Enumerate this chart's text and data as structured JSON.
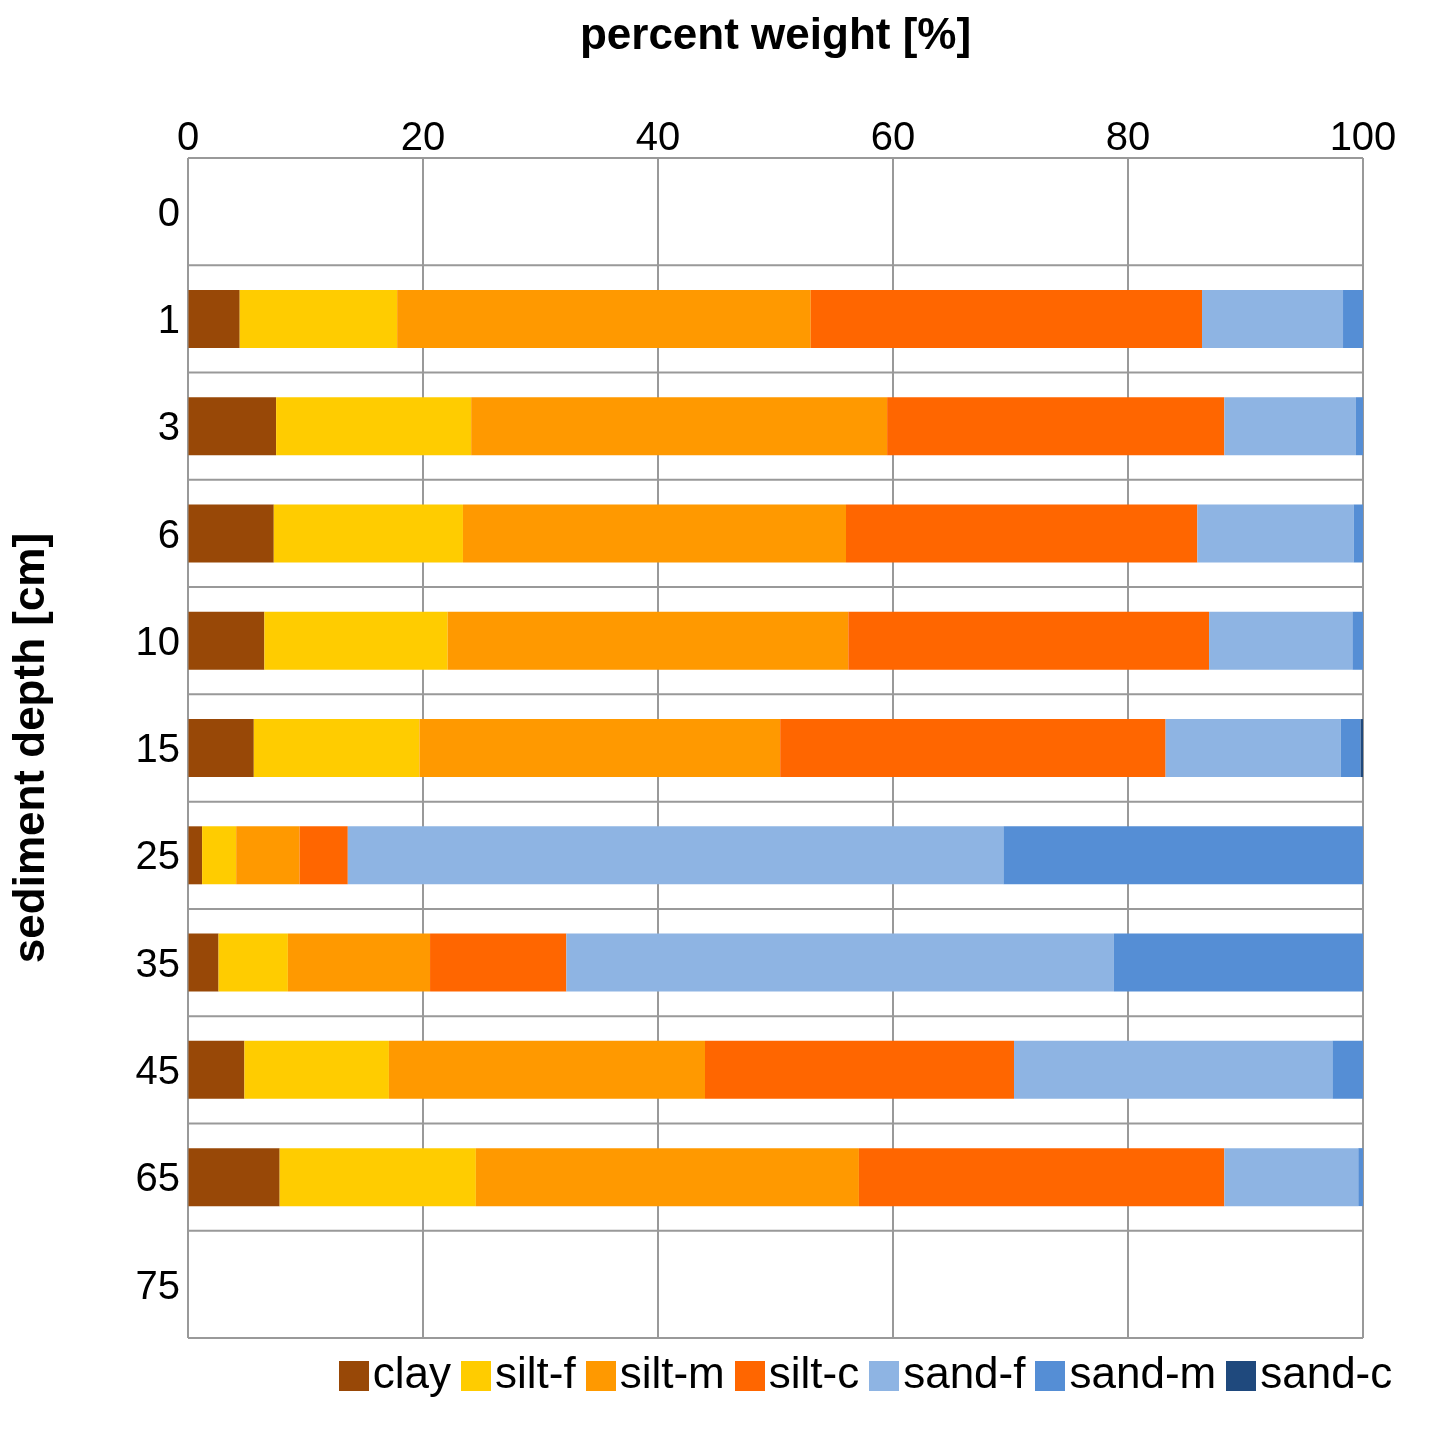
{
  "chart_data": {
    "type": "bar",
    "orientation": "horizontal",
    "stacked": true,
    "xlabel": "percent weight [%]",
    "ylabel": "sediment depth [cm]",
    "categories": [
      "0",
      "1",
      "3",
      "6",
      "10",
      "15",
      "25",
      "35",
      "45",
      "65",
      "75"
    ],
    "xlim": [
      0,
      100
    ],
    "xticks": [
      0,
      20,
      40,
      60,
      80,
      100
    ],
    "grid": true,
    "legend": "bottom",
    "series": [
      {
        "name": "clay",
        "color": "#984807",
        "values": [
          null,
          4.4,
          7.5,
          7.3,
          6.5,
          5.6,
          1.2,
          2.6,
          4.8,
          7.8,
          null
        ]
      },
      {
        "name": "silt-f",
        "color": "#ffcc00",
        "values": [
          null,
          13.4,
          16.6,
          16.1,
          15.6,
          14.1,
          2.9,
          5.9,
          12.3,
          16.7,
          null
        ]
      },
      {
        "name": "silt-m",
        "color": "#ff9900",
        "values": [
          null,
          35.2,
          35.4,
          32.6,
          34.1,
          30.7,
          5.4,
          12.1,
          26.9,
          32.6,
          null
        ]
      },
      {
        "name": "silt-c",
        "color": "#ff6600",
        "values": [
          null,
          33.3,
          28.7,
          29.9,
          30.7,
          32.8,
          4.1,
          11.6,
          26.3,
          31.1,
          null
        ]
      },
      {
        "name": "sand-f",
        "color": "#8eb4e3",
        "values": [
          null,
          12.0,
          11.2,
          13.3,
          12.2,
          14.9,
          55.8,
          46.6,
          27.1,
          11.4,
          null
        ]
      },
      {
        "name": "sand-m",
        "color": "#558ed5",
        "values": [
          null,
          1.7,
          0.6,
          0.8,
          0.9,
          1.7,
          30.6,
          21.2,
          2.6,
          0.4,
          null
        ]
      },
      {
        "name": "sand-c",
        "color": "#1f497d",
        "values": [
          null,
          null,
          null,
          null,
          null,
          0.2,
          null,
          null,
          null,
          null,
          null
        ]
      }
    ]
  }
}
